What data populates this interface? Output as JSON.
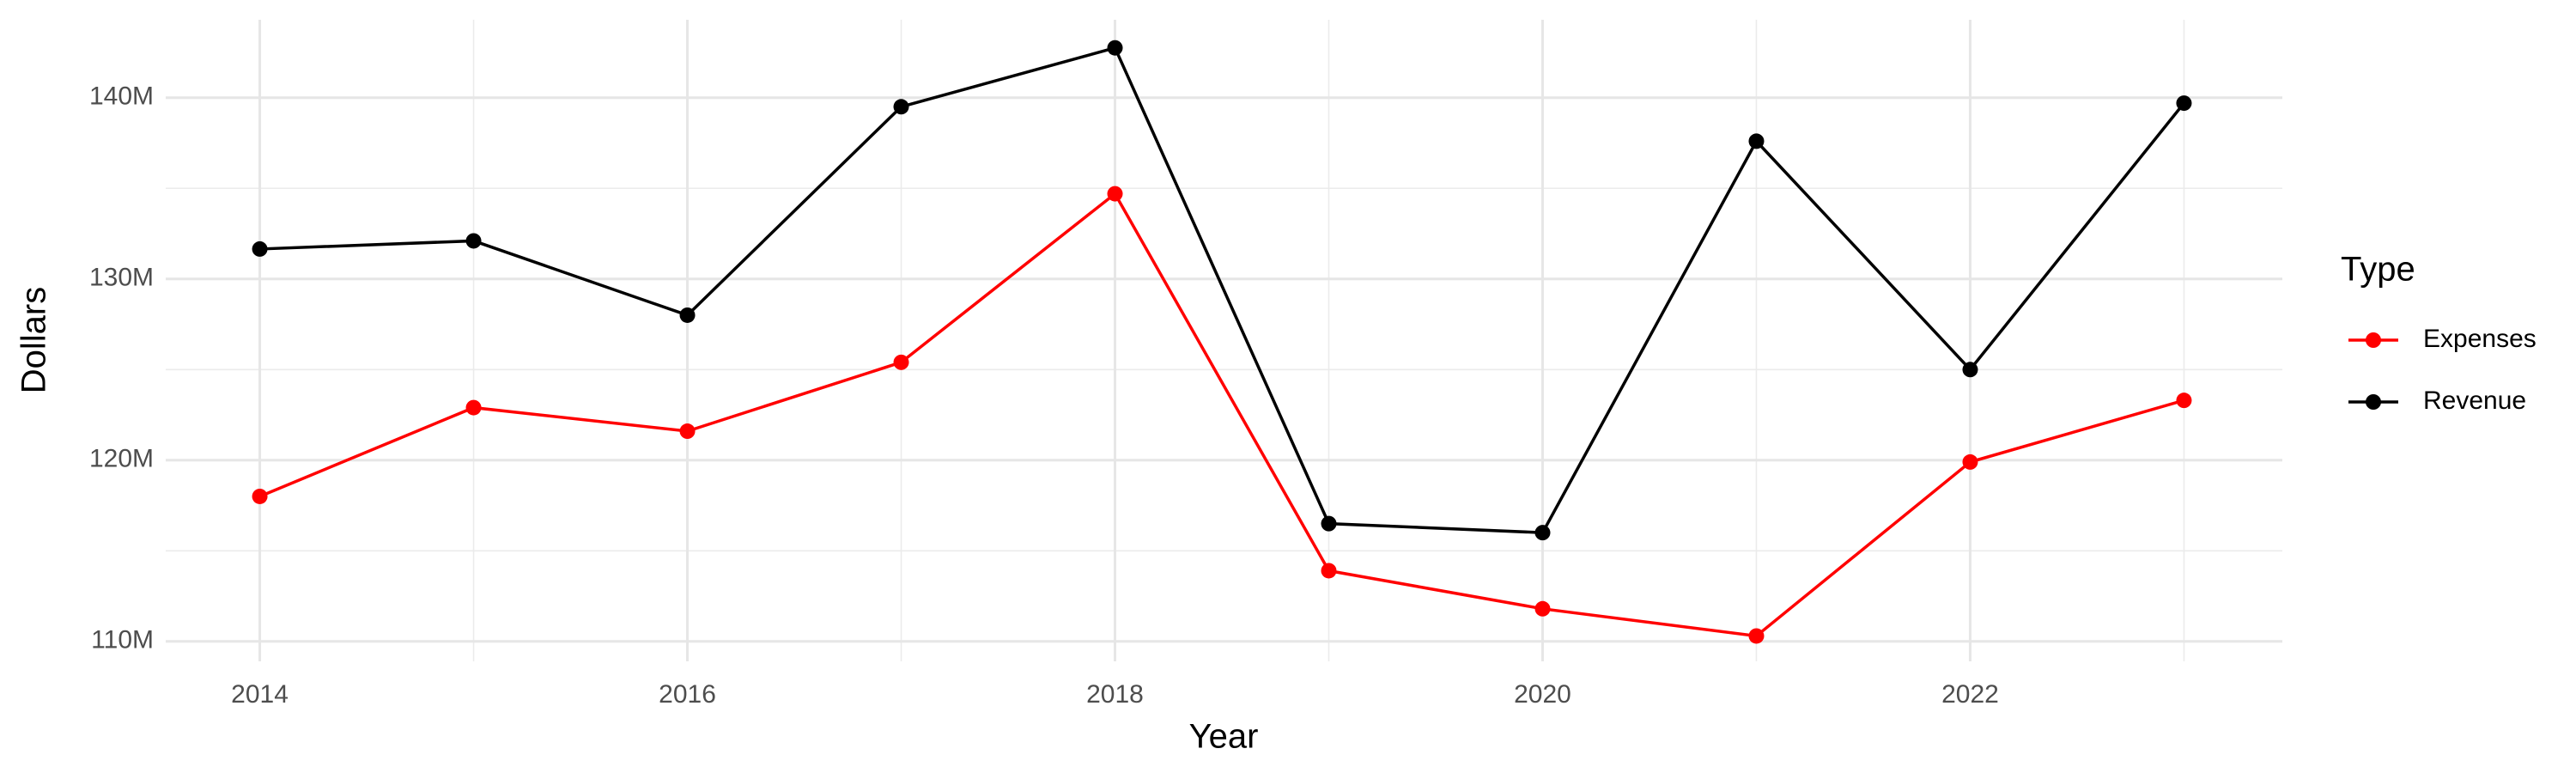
{
  "chart_data": {
    "type": "line",
    "x_label": "Year",
    "y_label": "Dollars",
    "legend_title": "Type",
    "legend": "right",
    "grid": true,
    "x": [
      2014,
      2015,
      2016,
      2017,
      2018,
      2019,
      2020,
      2021,
      2022,
      2023
    ],
    "series": [
      {
        "name": "Expenses",
        "color": "#ff0000",
        "values": [
          118000000,
          122900000,
          121600000,
          125400000,
          134700000,
          113900000,
          111800000,
          110300000,
          119900000,
          123300000
        ]
      },
      {
        "name": "Revenue",
        "color": "#000000",
        "values": [
          131650000,
          132100000,
          128000000,
          139500000,
          142750000,
          116500000,
          116000000,
          137600000,
          125000000,
          139700000
        ]
      }
    ],
    "xlim": [
      2013.56,
      2023.46
    ],
    "xticks": [
      2014,
      2016,
      2018,
      2020,
      2022
    ],
    "ylim": [
      108900000,
      144300000
    ],
    "yticks": [
      {
        "value": 110000000,
        "label": "110M"
      },
      {
        "value": 120000000,
        "label": "120M"
      },
      {
        "value": 130000000,
        "label": "130M"
      },
      {
        "value": 140000000,
        "label": "140M"
      }
    ]
  }
}
